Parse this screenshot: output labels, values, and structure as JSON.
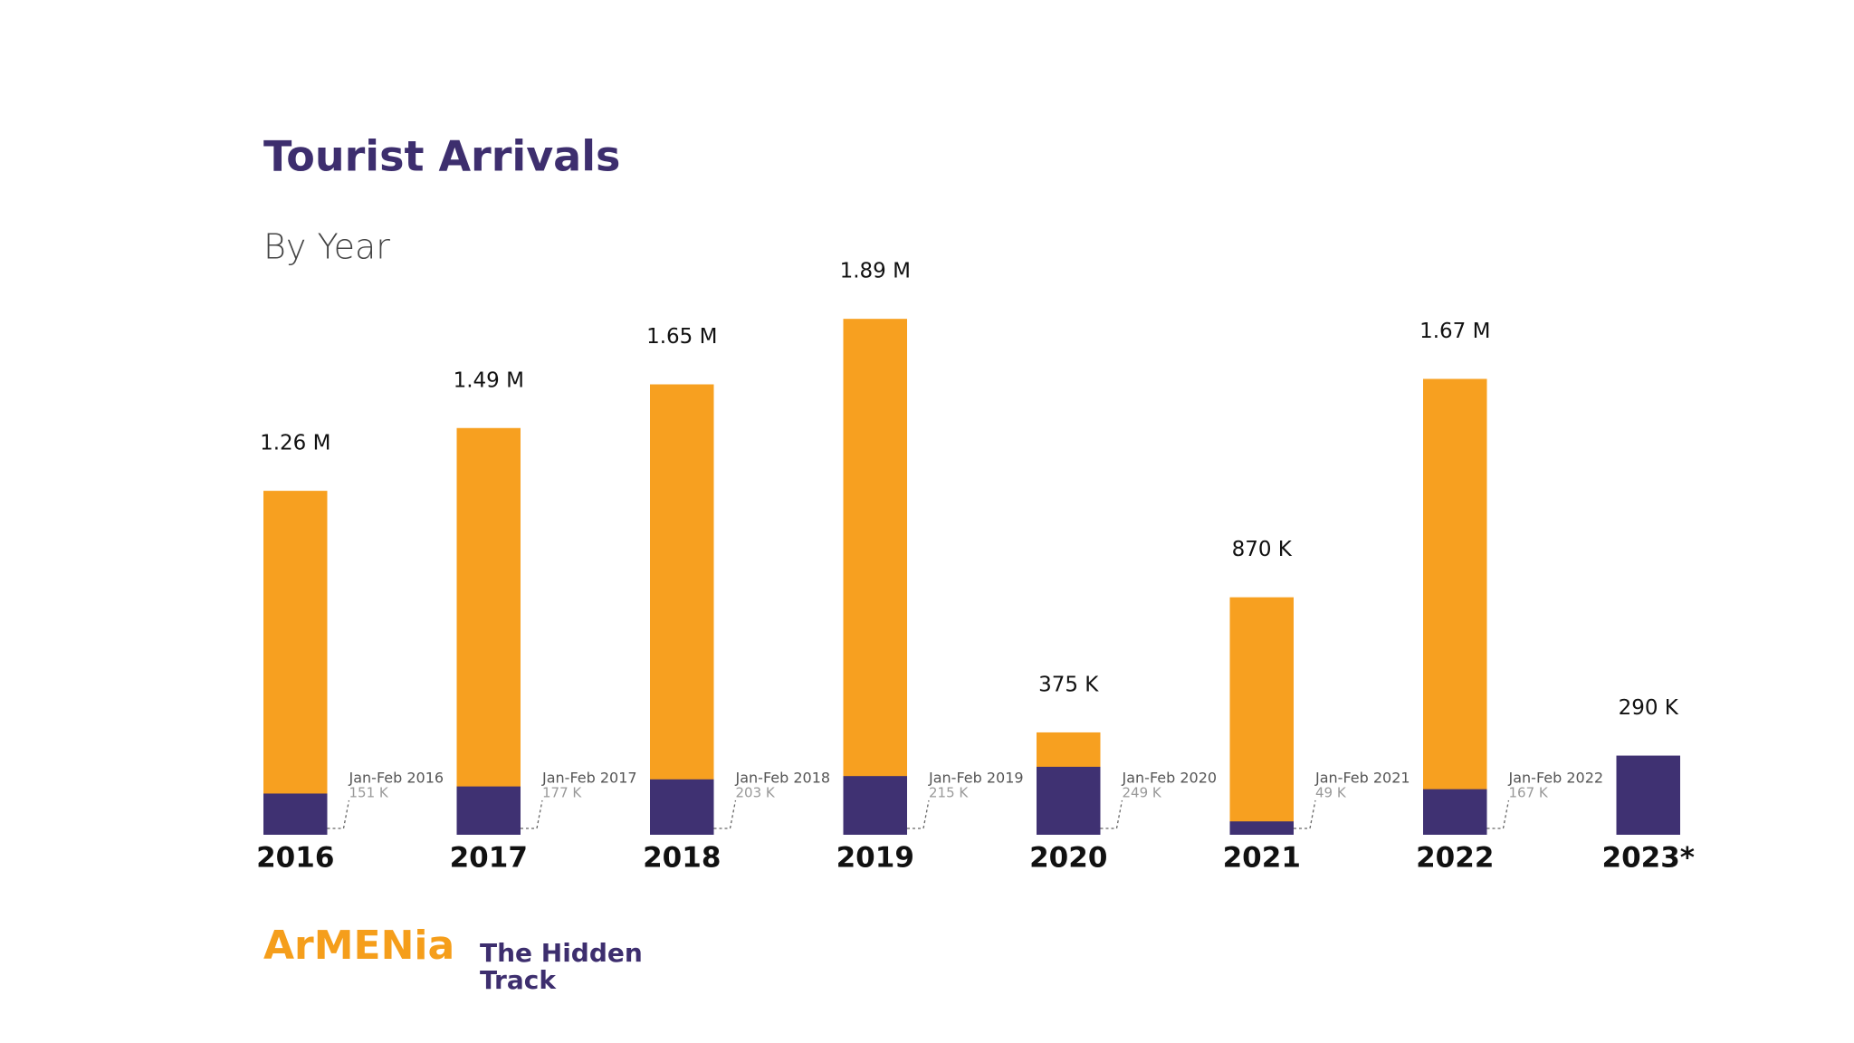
{
  "chart_data": {
    "type": "bar",
    "title": "Tourist Arrivals",
    "subtitle": "By Year",
    "categories": [
      "2016",
      "2017",
      "2018",
      "2019",
      "2020",
      "2021",
      "2022",
      "2023*"
    ],
    "series": [
      {
        "color": "#f7a020",
        "values": [
          1260000,
          1490000,
          1650000,
          1890000,
          375000,
          870000,
          1670000,
          null
        ],
        "value_labels": [
          "1.26 M",
          "1.49 M",
          "1.65 M",
          "1.89 M",
          "375 K",
          "870 K",
          "1.67 M",
          null
        ]
      },
      {
        "color": "#3f3172",
        "values": [
          151000,
          177000,
          203000,
          215000,
          249000,
          49000,
          167000,
          290000
        ],
        "value_labels": [
          "151 K",
          "177 K",
          "203 K",
          "215 K",
          "249 K",
          "49 K",
          "167 K",
          "290 K"
        ]
      }
    ],
    "annotations": [
      "Jan-Feb 2016",
      "Jan-Feb 2017",
      "Jan-Feb 2018",
      "Jan-Feb 2019",
      "Jan-Feb 2020",
      "Jan-Feb 2021",
      "Jan-Feb 2022"
    ],
    "ylim": [
      0,
      2000000
    ]
  },
  "logo": {
    "brand": "ArMENia",
    "tagline": [
      "The Hidden",
      "Track"
    ]
  }
}
